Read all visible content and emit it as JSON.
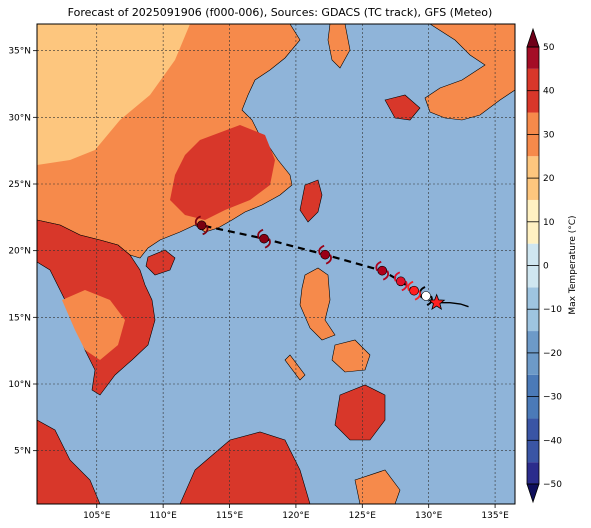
{
  "title": "Forecast of 2025091906 (f000-006), Sources: GDACS (TC track), GFS (Meteo)",
  "map": {
    "lon_range": [
      100.5,
      136.5
    ],
    "lat_range": [
      1.0,
      37.0
    ],
    "lon_ticks": [
      105,
      110,
      115,
      120,
      125,
      130,
      135
    ],
    "lat_ticks": [
      5,
      10,
      15,
      20,
      25,
      30,
      35
    ],
    "lon_tick_labels": [
      "105°E",
      "110°E",
      "115°E",
      "120°E",
      "125°E",
      "130°E",
      "135°E"
    ],
    "lat_tick_labels": [
      "5°N",
      "10°N",
      "15°N",
      "20°N",
      "25°N",
      "30°N",
      "35°N"
    ],
    "gridlines": true,
    "ocean_color": "#8fb4d9"
  },
  "colorbar": {
    "label": "Max Temperature (°C)",
    "ticks": [
      -50,
      -40,
      -30,
      -20,
      -10,
      0,
      10,
      20,
      30,
      40,
      50
    ],
    "tick_labels": [
      "−50",
      "−40",
      "−30",
      "−20",
      "−10",
      "0",
      "10",
      "20",
      "30",
      "40",
      "50"
    ],
    "colors": [
      "#2b2c8c",
      "#3a55a5",
      "#4b7ab8",
      "#6d9ac8",
      "#9ec4e0",
      "#cfe6f0",
      "#fff1c2",
      "#fdc67e",
      "#f68a4b",
      "#d8372a",
      "#a40d26"
    ]
  },
  "track": {
    "past": [
      [
        130.6,
        16.1
      ],
      [
        131.6,
        16.1
      ],
      [
        132.4,
        16.0
      ],
      [
        133.0,
        15.8
      ]
    ],
    "forecast": [
      [
        130.6,
        16.1
      ],
      [
        129.5,
        16.5
      ],
      [
        128.9,
        17.0
      ],
      [
        127.9,
        17.7
      ],
      [
        126.5,
        18.5
      ],
      [
        122.2,
        19.7
      ],
      [
        117.6,
        20.9
      ],
      [
        112.9,
        21.9
      ]
    ],
    "current": [
      130.6,
      16.1
    ],
    "symbols": [
      {
        "lon": 129.8,
        "lat": 16.6,
        "color": "#ffffff"
      },
      {
        "lon": 128.9,
        "lat": 17.0,
        "color": "#ff2020"
      },
      {
        "lon": 127.9,
        "lat": 17.7,
        "color": "#e0102a"
      },
      {
        "lon": 126.5,
        "lat": 18.5,
        "color": "#b0001c"
      },
      {
        "lon": 122.2,
        "lat": 19.7,
        "color": "#9a0016"
      },
      {
        "lon": 117.6,
        "lat": 20.9,
        "color": "#8a0012"
      },
      {
        "lon": 112.9,
        "lat": 21.9,
        "color": "#7a0010"
      }
    ]
  }
}
